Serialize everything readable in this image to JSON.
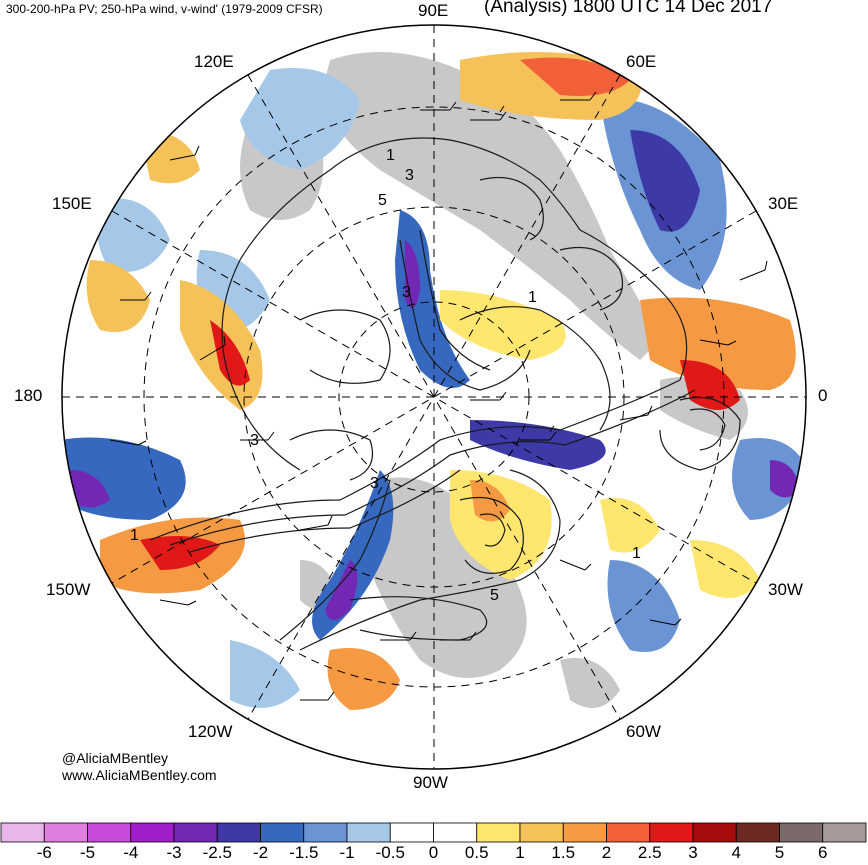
{
  "header": {
    "left_title": "300-200-hPa PV; 250-hPa wind, v-wind' (1979-2009 CFSR)",
    "right_title": "(Analysis) 1800 UTC 14 Dec 2017"
  },
  "map": {
    "projection": "north-polar-stereographic",
    "center_label": "",
    "longitude_labels": [
      {
        "label": "90E",
        "lon": 90
      },
      {
        "label": "60E",
        "lon": 60
      },
      {
        "label": "30E",
        "lon": 30
      },
      {
        "label": "0",
        "lon": 0
      },
      {
        "label": "30W",
        "lon": -30
      },
      {
        "label": "60W",
        "lon": -60
      },
      {
        "label": "90W",
        "lon": -90
      },
      {
        "label": "120W",
        "lon": -120
      },
      {
        "label": "150W",
        "lon": -150
      },
      {
        "label": "180",
        "lon": 180
      },
      {
        "label": "150E",
        "lon": 150
      },
      {
        "label": "120E",
        "lon": 120
      }
    ],
    "contour_labels": [
      "1",
      "3",
      "5",
      "3",
      "1",
      "3",
      "1",
      "3",
      "5",
      "1"
    ],
    "colors": {
      "land_gray": "#c8c8c8",
      "contour": "#1a1a1a",
      "grid": "#000000"
    }
  },
  "credit": {
    "handle": "@AliciaMBentley",
    "website": "www.AliciaMBentley.com"
  },
  "colorbar": {
    "labels": [
      "-6",
      "-5",
      "-4",
      "-3",
      "-2.5",
      "-2",
      "-1.5",
      "-1",
      "-0.5",
      "0",
      "0.5",
      "1",
      "1.5",
      "2",
      "2.5",
      "3",
      "4",
      "5",
      "6"
    ],
    "colors": [
      "#e8b6e8",
      "#e07ee0",
      "#c94ad8",
      "#a21ec9",
      "#7228b5",
      "#3d3aa8",
      "#3668c0",
      "#6a94d4",
      "#a6c8e8",
      "#ffffff",
      "#ffffff",
      "#ffe66e",
      "#f5c25a",
      "#f59a42",
      "#f2603a",
      "#e01818",
      "#a50d0d",
      "#6e2a22",
      "#7a6a6a",
      "#a89a9a"
    ]
  }
}
